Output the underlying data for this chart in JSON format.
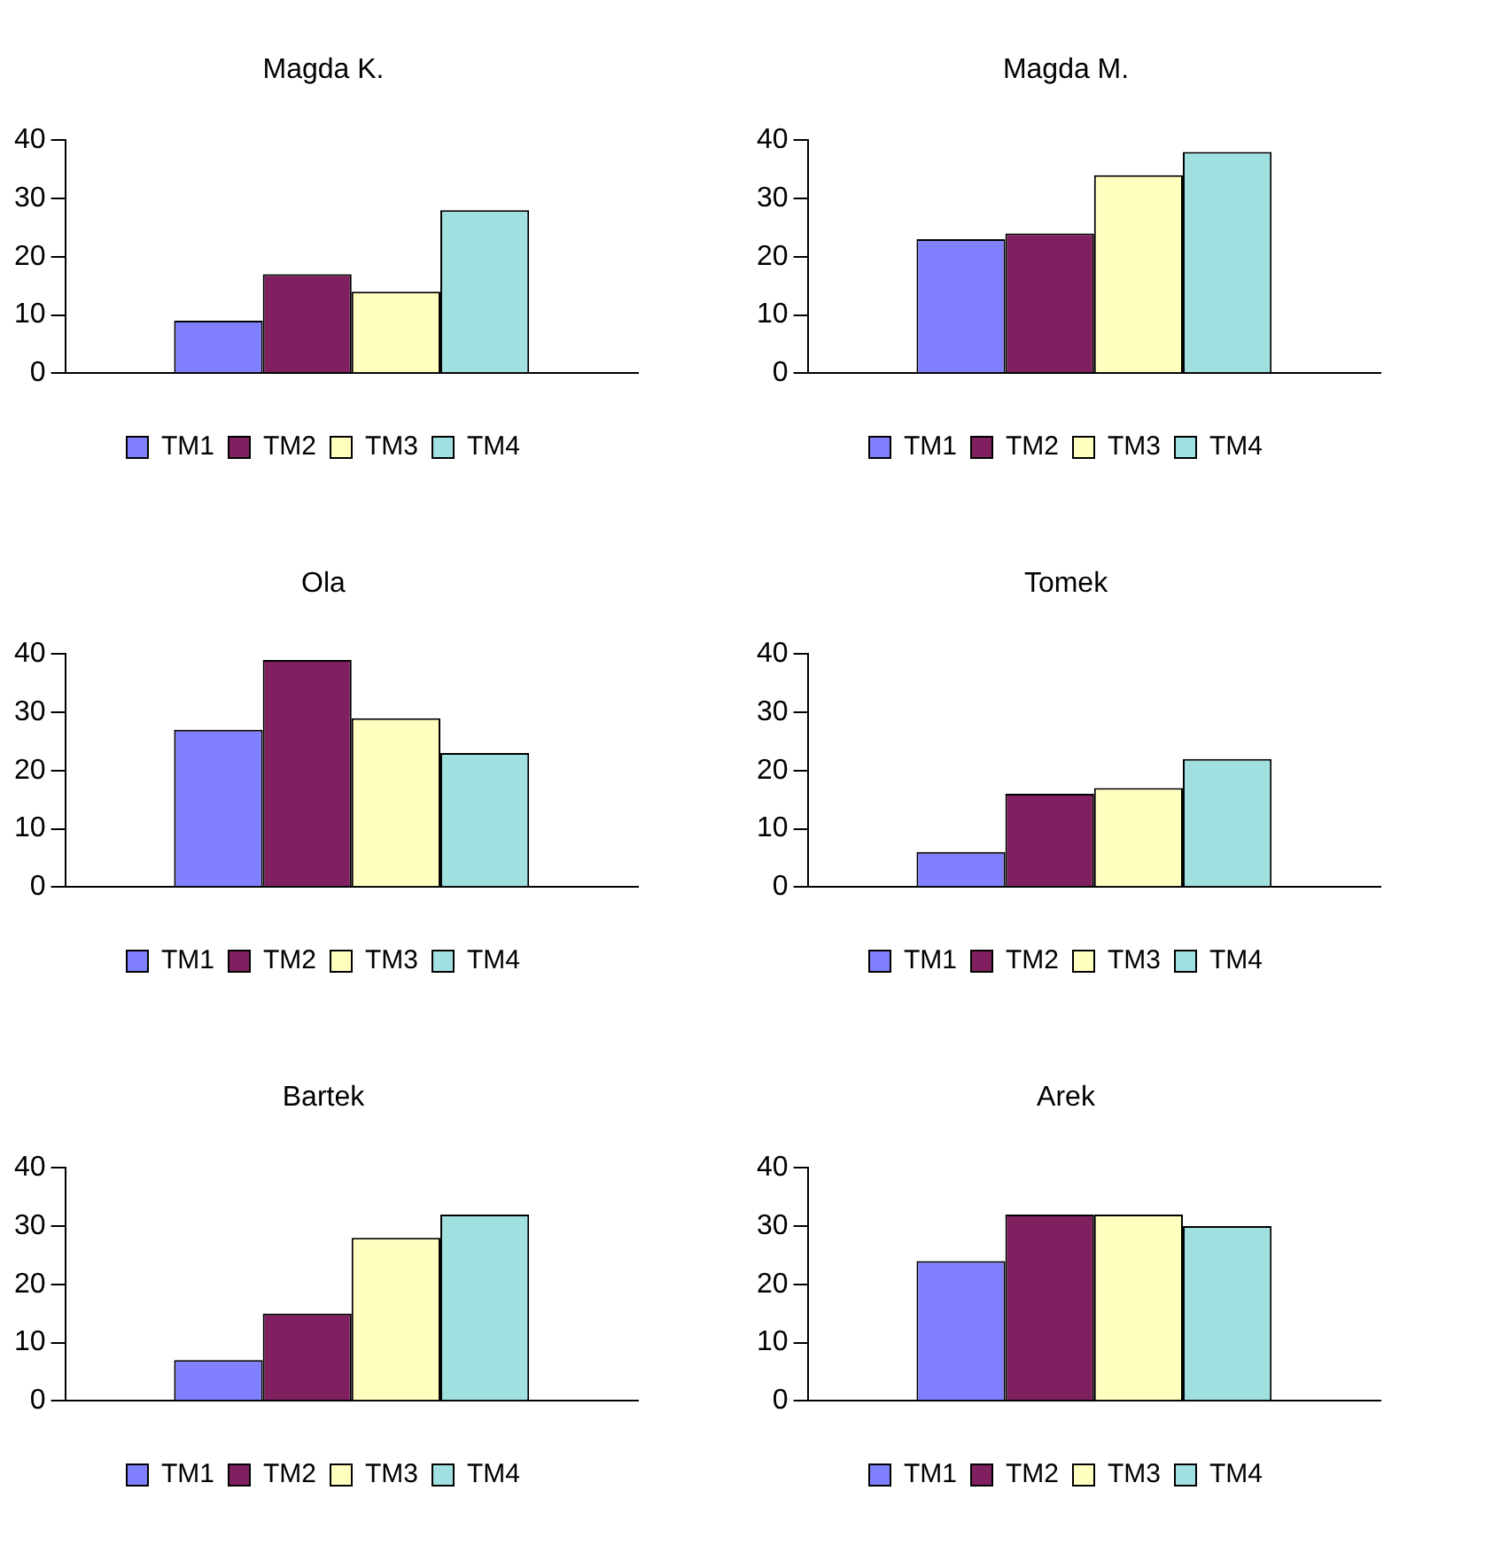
{
  "chart_data": [
    {
      "type": "bar",
      "title": "Magda K.",
      "categories": [
        null
      ],
      "ylim": [
        0,
        40
      ],
      "yticks": [
        0,
        10,
        20,
        30,
        40
      ],
      "grid": false,
      "legend": "bottom",
      "series": [
        {
          "name": "TM1",
          "color": "#8080ff",
          "values": [
            9
          ]
        },
        {
          "name": "TM2",
          "color": "#802060",
          "values": [
            17
          ]
        },
        {
          "name": "TM3",
          "color": "#ffffc0",
          "values": [
            14
          ]
        },
        {
          "name": "TM4",
          "color": "#a0e0e0",
          "values": [
            28
          ]
        }
      ]
    },
    {
      "type": "bar",
      "title": "Magda M.",
      "categories": [
        null
      ],
      "ylim": [
        0,
        40
      ],
      "yticks": [
        0,
        10,
        20,
        30,
        40
      ],
      "grid": false,
      "legend": "bottom",
      "series": [
        {
          "name": "TM1",
          "color": "#8080ff",
          "values": [
            23
          ]
        },
        {
          "name": "TM2",
          "color": "#802060",
          "values": [
            24
          ]
        },
        {
          "name": "TM3",
          "color": "#ffffc0",
          "values": [
            34
          ]
        },
        {
          "name": "TM4",
          "color": "#a0e0e0",
          "values": [
            38
          ]
        }
      ]
    },
    {
      "type": "bar",
      "title": "Ola",
      "categories": [
        null
      ],
      "ylim": [
        0,
        40
      ],
      "yticks": [
        0,
        10,
        20,
        30,
        40
      ],
      "grid": false,
      "legend": "bottom",
      "series": [
        {
          "name": "TM1",
          "color": "#8080ff",
          "values": [
            27
          ]
        },
        {
          "name": "TM2",
          "color": "#802060",
          "values": [
            39
          ]
        },
        {
          "name": "TM3",
          "color": "#ffffc0",
          "values": [
            29
          ]
        },
        {
          "name": "TM4",
          "color": "#a0e0e0",
          "values": [
            23
          ]
        }
      ]
    },
    {
      "type": "bar",
      "title": "Tomek",
      "categories": [
        null
      ],
      "ylim": [
        0,
        40
      ],
      "yticks": [
        0,
        10,
        20,
        30,
        40
      ],
      "grid": false,
      "legend": "bottom",
      "series": [
        {
          "name": "TM1",
          "color": "#8080ff",
          "values": [
            6
          ]
        },
        {
          "name": "TM2",
          "color": "#802060",
          "values": [
            16
          ]
        },
        {
          "name": "TM3",
          "color": "#ffffc0",
          "values": [
            17
          ]
        },
        {
          "name": "TM4",
          "color": "#a0e0e0",
          "values": [
            22
          ]
        }
      ]
    },
    {
      "type": "bar",
      "title": "Bartek",
      "categories": [
        null
      ],
      "ylim": [
        0,
        40
      ],
      "yticks": [
        0,
        10,
        20,
        30,
        40
      ],
      "grid": false,
      "legend": "bottom",
      "series": [
        {
          "name": "TM1",
          "color": "#8080ff",
          "values": [
            7
          ]
        },
        {
          "name": "TM2",
          "color": "#802060",
          "values": [
            15
          ]
        },
        {
          "name": "TM3",
          "color": "#ffffc0",
          "values": [
            28
          ]
        },
        {
          "name": "TM4",
          "color": "#a0e0e0",
          "values": [
            32
          ]
        }
      ]
    },
    {
      "type": "bar",
      "title": "Arek",
      "categories": [
        null
      ],
      "ylim": [
        0,
        40
      ],
      "yticks": [
        0,
        10,
        20,
        30,
        40
      ],
      "grid": false,
      "legend": "bottom",
      "series": [
        {
          "name": "TM1",
          "color": "#8080ff",
          "values": [
            24
          ]
        },
        {
          "name": "TM2",
          "color": "#802060",
          "values": [
            32
          ]
        },
        {
          "name": "TM3",
          "color": "#ffffc0",
          "values": [
            32
          ]
        },
        {
          "name": "TM4",
          "color": "#a0e0e0",
          "values": [
            30
          ]
        }
      ]
    }
  ]
}
